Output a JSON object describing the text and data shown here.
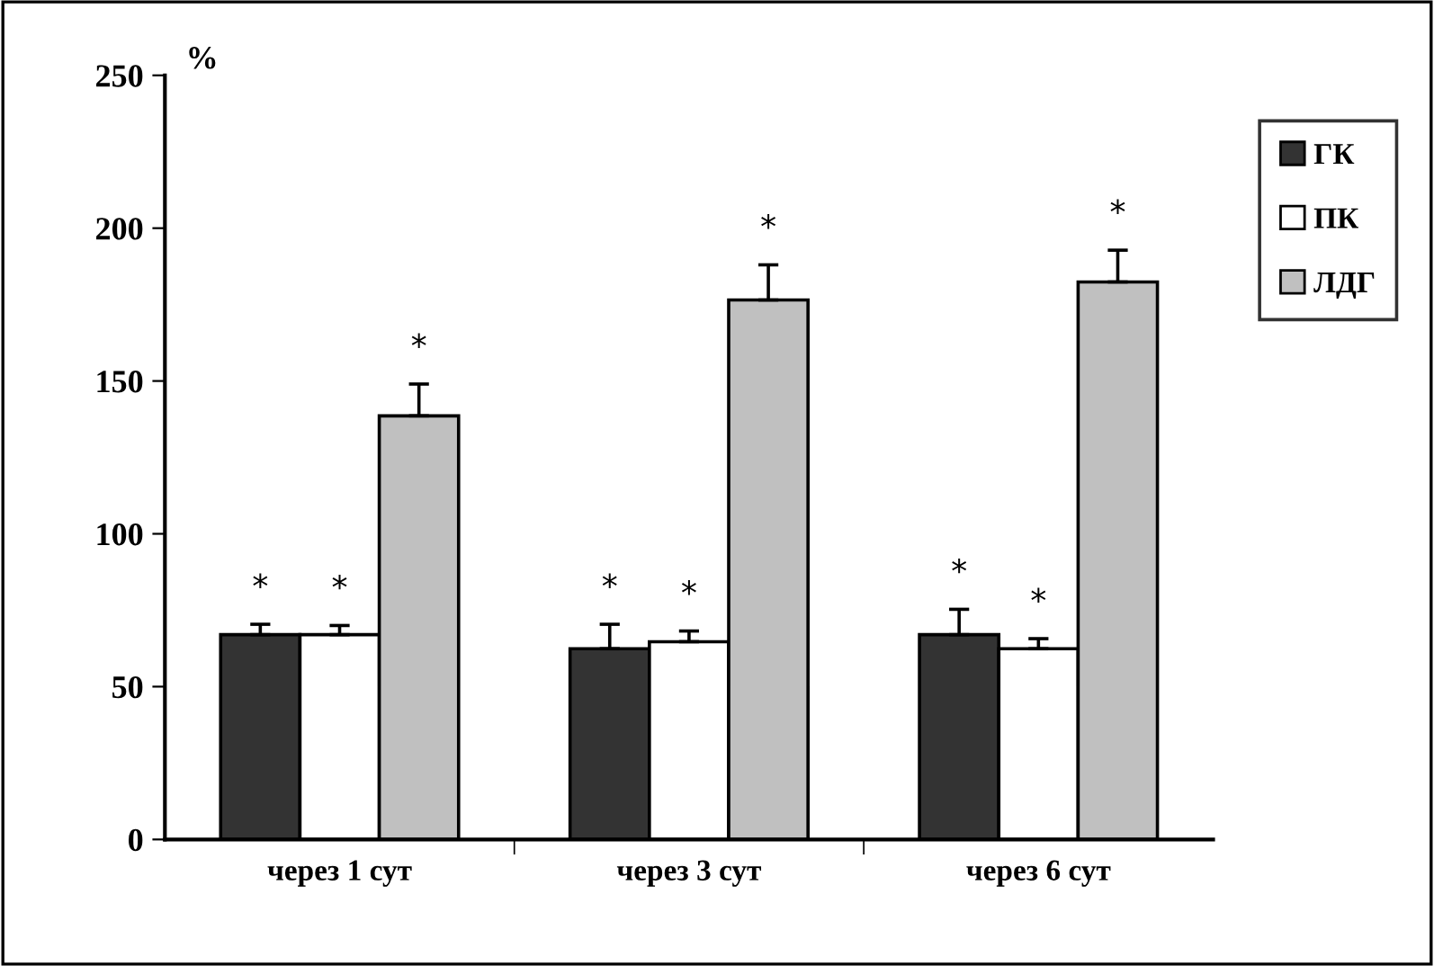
{
  "chart_data": {
    "type": "bar",
    "ylabel": "%",
    "categories": [
      "через 1 сут",
      "через 3 сут",
      "через 6 сут"
    ],
    "series": [
      {
        "name": "ГК",
        "color": "#333333",
        "values": [
          67,
          62.4,
          67
        ],
        "errors": [
          [
            67,
            70.4
          ],
          [
            62.4,
            70.4
          ],
          [
            67,
            75.3
          ]
        ],
        "value_labels": [
          "*",
          "*",
          "*"
        ]
      },
      {
        "name": "ПК",
        "color": "#ffffff",
        "values": [
          67,
          64.7,
          62.4
        ],
        "errors": [
          [
            67,
            70
          ],
          [
            64.7,
            68.2
          ],
          [
            62.4,
            65.7
          ]
        ],
        "value_labels": [
          "*",
          "*",
          "*"
        ]
      },
      {
        "name": "ЛДГ",
        "color": "#c0c0c0",
        "values": [
          138.6,
          176.5,
          182.4
        ],
        "errors": [
          [
            138.6,
            149
          ],
          [
            176.5,
            188
          ],
          [
            182.4,
            192.8
          ]
        ],
        "value_labels": [
          "*",
          "*",
          "*"
        ]
      }
    ],
    "ylim": [
      0,
      250
    ],
    "yticks": [
      0,
      50,
      100,
      150,
      200,
      250
    ],
    "grid": false,
    "legend": "top right"
  }
}
